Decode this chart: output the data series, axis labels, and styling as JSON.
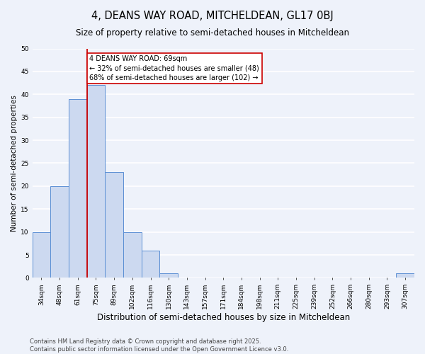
{
  "title": "4, DEANS WAY ROAD, MITCHELDEAN, GL17 0BJ",
  "subtitle": "Size of property relative to semi-detached houses in Mitcheldean",
  "xlabel": "Distribution of semi-detached houses by size in Mitcheldean",
  "ylabel": "Number of semi-detached properties",
  "bar_labels": [
    "34sqm",
    "48sqm",
    "61sqm",
    "75sqm",
    "89sqm",
    "102sqm",
    "116sqm",
    "130sqm",
    "143sqm",
    "157sqm",
    "171sqm",
    "184sqm",
    "198sqm",
    "211sqm",
    "225sqm",
    "239sqm",
    "252sqm",
    "266sqm",
    "280sqm",
    "293sqm",
    "307sqm"
  ],
  "bar_values": [
    10,
    20,
    39,
    42,
    23,
    10,
    6,
    1,
    0,
    0,
    0,
    0,
    0,
    0,
    0,
    0,
    0,
    0,
    0,
    0,
    1
  ],
  "bar_color": "#ccd9f0",
  "bar_edge_color": "#5b8fd4",
  "ylim": [
    0,
    50
  ],
  "yticks": [
    0,
    5,
    10,
    15,
    20,
    25,
    30,
    35,
    40,
    45,
    50
  ],
  "property_line_color": "#cc0000",
  "annotation_line1": "4 DEANS WAY ROAD: 69sqm",
  "annotation_line2": "← 32% of semi-detached houses are smaller (48)",
  "annotation_line3": "68% of semi-detached houses are larger (102) →",
  "annotation_box_color": "#ffffff",
  "annotation_box_edge": "#cc0000",
  "footer_text": "Contains HM Land Registry data © Crown copyright and database right 2025.\nContains public sector information licensed under the Open Government Licence v3.0.",
  "background_color": "#eef2fa",
  "grid_color": "#ffffff",
  "title_fontsize": 10.5,
  "subtitle_fontsize": 8.5,
  "xlabel_fontsize": 8.5,
  "ylabel_fontsize": 7.5,
  "tick_fontsize": 6.5,
  "annotation_fontsize": 7,
  "footer_fontsize": 6
}
